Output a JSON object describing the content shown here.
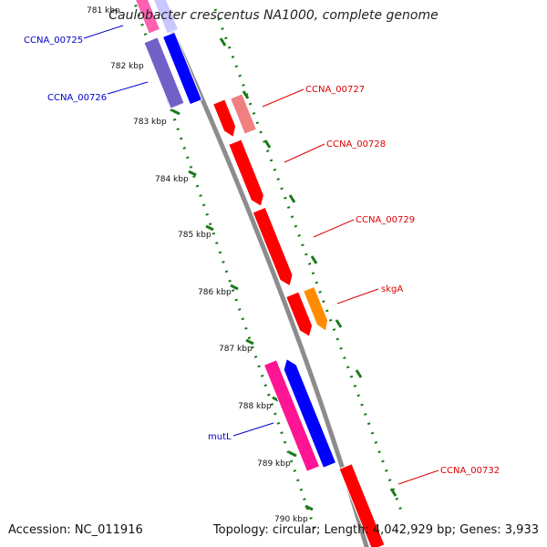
{
  "title": "Caulobacter crescentus NA1000, complete genome",
  "accession": "Accession: NC_011916",
  "stats": "Topology: circular; Length: 4,042,929 bp; Genes: 3,933",
  "ticks": [
    "781 kbp",
    "782 kbp",
    "783 kbp",
    "784 kbp",
    "785 kbp",
    "786 kbp",
    "787 kbp",
    "788 kbp",
    "789 kbp",
    "790 kbp"
  ],
  "genes": [
    {
      "name": "CCNA_00725",
      "color": "#0000cc"
    },
    {
      "name": "CCNA_00726",
      "color": "#0000cc"
    },
    {
      "name": "CCNA_00727",
      "color": "#dd0000"
    },
    {
      "name": "CCNA_00728",
      "color": "#dd0000"
    },
    {
      "name": "CCNA_00729",
      "color": "#dd0000"
    },
    {
      "name": "skgA",
      "color": "#dd0000"
    },
    {
      "name": "mutL",
      "color": "#0000cc"
    },
    {
      "name": "CCNA_00732",
      "color": "#dd0000"
    }
  ],
  "colors": {
    "backbone": "#8c8c8c",
    "gc_dots": "#1a7a1a",
    "feature_red": "#ff0000",
    "feature_pink_light": "#f08080",
    "feature_orange": "#ff8c00",
    "feature_blue": "#0000ff",
    "feature_purple": "#7060c8",
    "feature_magenta": "#ff1493"
  }
}
